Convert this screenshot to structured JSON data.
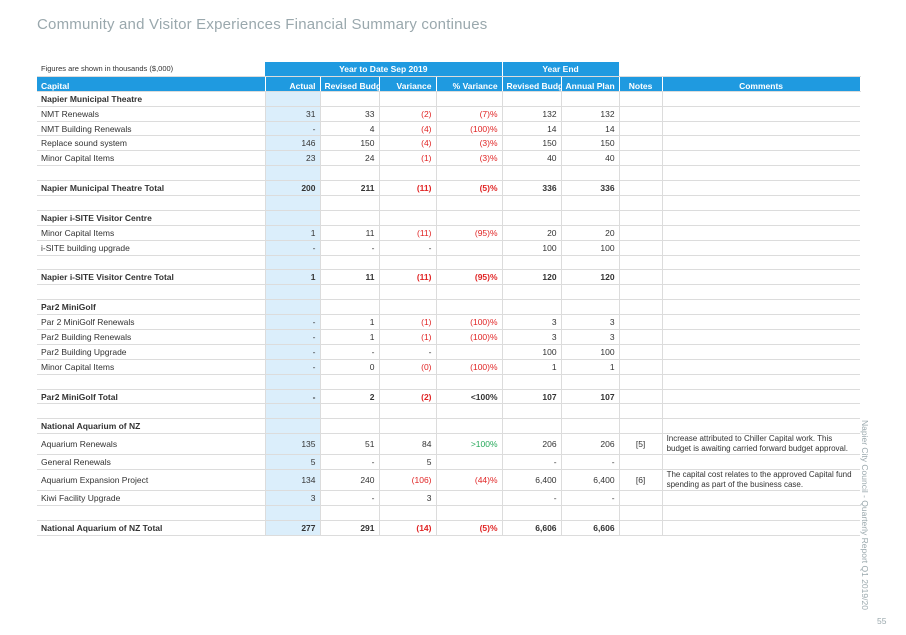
{
  "page": {
    "title": "Community and Visitor Experiences Financial Summary continues",
    "side_label": "Napier City Council - Quarterly Report Q1 2019/20",
    "page_number": "55"
  },
  "table": {
    "figures_note": "Figures are shown in thousands ($,000)",
    "group_ytd": "Year to Date Sep 2019",
    "group_ye": "Year End",
    "columns": {
      "capital": "Capital",
      "actual": "Actual",
      "revised_budget_ytd": "Revised Budget",
      "variance": "Variance",
      "pct_variance": "% Variance",
      "revised_budget_ye": "Revised Budget",
      "annual_plan": "Annual Plan",
      "notes": "Notes",
      "comments": "Comments"
    },
    "rows": [
      {
        "type": "section",
        "label": "Napier Municipal Theatre"
      },
      {
        "type": "item",
        "label": "NMT Renewals",
        "actual": "31",
        "budget": "33",
        "variance": "(2)",
        "pct": "(7)%",
        "rb": "132",
        "ap": "132",
        "vneg": true,
        "pneg": true
      },
      {
        "type": "item",
        "label": "NMT Building Renewals",
        "actual": "-",
        "budget": "4",
        "variance": "(4)",
        "pct": "(100)%",
        "rb": "14",
        "ap": "14",
        "vneg": true,
        "pneg": true
      },
      {
        "type": "item",
        "label": "Replace sound system",
        "actual": "146",
        "budget": "150",
        "variance": "(4)",
        "pct": "(3)%",
        "rb": "150",
        "ap": "150",
        "vneg": true,
        "pneg": true
      },
      {
        "type": "item",
        "label": "Minor Capital Items",
        "actual": "23",
        "budget": "24",
        "variance": "(1)",
        "pct": "(3)%",
        "rb": "40",
        "ap": "40",
        "vneg": true,
        "pneg": true
      },
      {
        "type": "blank"
      },
      {
        "type": "total",
        "label": "Napier Municipal Theatre Total",
        "actual": "200",
        "budget": "211",
        "variance": "(11)",
        "pct": "(5)%",
        "rb": "336",
        "ap": "336",
        "vneg": true,
        "pneg": true
      },
      {
        "type": "blank"
      },
      {
        "type": "section",
        "label": "Napier i-SITE Visitor Centre"
      },
      {
        "type": "item",
        "label": "Minor Capital Items",
        "actual": "1",
        "budget": "11",
        "variance": "(11)",
        "pct": "(95)%",
        "rb": "20",
        "ap": "20",
        "vneg": true,
        "pneg": true
      },
      {
        "type": "item",
        "label": "i-SITE building upgrade",
        "actual": "-",
        "budget": "-",
        "variance": "-",
        "pct": "",
        "rb": "100",
        "ap": "100"
      },
      {
        "type": "blank"
      },
      {
        "type": "total",
        "label": "Napier i-SITE Visitor Centre Total",
        "actual": "1",
        "budget": "11",
        "variance": "(11)",
        "pct": "(95)%",
        "rb": "120",
        "ap": "120",
        "vneg": true,
        "pneg": true
      },
      {
        "type": "blank"
      },
      {
        "type": "section",
        "label": "Par2 MiniGolf"
      },
      {
        "type": "item",
        "label": "Par 2 MiniGolf Renewals",
        "actual": "-",
        "budget": "1",
        "variance": "(1)",
        "pct": "(100)%",
        "rb": "3",
        "ap": "3",
        "vneg": true,
        "pneg": true
      },
      {
        "type": "item",
        "label": "Par2 Building Renewals",
        "actual": "-",
        "budget": "1",
        "variance": "(1)",
        "pct": "(100)%",
        "rb": "3",
        "ap": "3",
        "vneg": true,
        "pneg": true
      },
      {
        "type": "item",
        "label": "Par2 Building Upgrade",
        "actual": "-",
        "budget": "-",
        "variance": "-",
        "pct": "",
        "rb": "100",
        "ap": "100"
      },
      {
        "type": "item",
        "label": "Minor Capital Items",
        "actual": "-",
        "budget": "0",
        "variance": "(0)",
        "pct": "(100)%",
        "rb": "1",
        "ap": "1",
        "vneg": true,
        "pneg": true
      },
      {
        "type": "blank"
      },
      {
        "type": "total",
        "label": "Par2 MiniGolf Total",
        "actual": "-",
        "budget": "2",
        "variance": "(2)",
        "pct": "<100%",
        "rb": "107",
        "ap": "107",
        "vneg": true
      },
      {
        "type": "blank"
      },
      {
        "type": "section",
        "label": "National Aquarium of NZ"
      },
      {
        "type": "item",
        "tall": true,
        "label": "Aquarium Renewals",
        "actual": "135",
        "budget": "51",
        "variance": "84",
        "pct": ">100%",
        "rb": "206",
        "ap": "206",
        "ppos": true,
        "note": "[5]",
        "comment": "Increase attributed to Chiller Capital work. This budget is awaiting carried forward budget approval."
      },
      {
        "type": "item",
        "label": "General Renewals",
        "actual": "5",
        "budget": "-",
        "variance": "5",
        "pct": "",
        "rb": "-",
        "ap": "-"
      },
      {
        "type": "item",
        "tall": true,
        "label": "Aquarium Expansion Project",
        "actual": "134",
        "budget": "240",
        "variance": "(106)",
        "pct": "(44)%",
        "rb": "6,400",
        "ap": "6,400",
        "vneg": true,
        "pneg": true,
        "note": "[6]",
        "comment": "The capital cost relates to the approved Capital fund spending as part of the business case."
      },
      {
        "type": "item",
        "label": "Kiwi Facility Upgrade",
        "actual": "3",
        "budget": "-",
        "variance": "3",
        "pct": "",
        "rb": "-",
        "ap": "-"
      },
      {
        "type": "blank"
      },
      {
        "type": "total",
        "label": "National Aquarium of NZ Total",
        "actual": "277",
        "budget": "291",
        "variance": "(14)",
        "pct": "(5)%",
        "rb": "6,606",
        "ap": "6,606",
        "vneg": true,
        "pneg": true
      }
    ]
  }
}
